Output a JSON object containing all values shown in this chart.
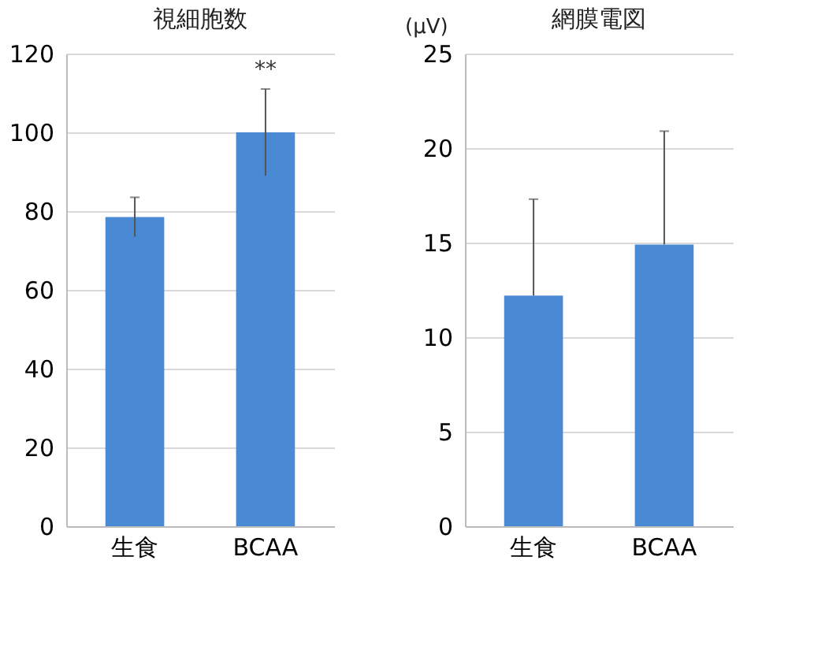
{
  "chart_data": [
    {
      "type": "bar",
      "title": "視細胞数",
      "categories": [
        "生食",
        "BCAA"
      ],
      "values": [
        78.5,
        100
      ],
      "errors": [
        5,
        11
      ],
      "color": "#4a8ad4",
      "ylim": [
        0,
        120
      ],
      "yticks": [
        0,
        20,
        40,
        60,
        80,
        100,
        120
      ],
      "grid": "y",
      "annotations": [
        "**"
      ]
    },
    {
      "type": "bar",
      "title": "網膜電図",
      "ylabel": "(μV)",
      "categories": [
        "生食",
        "BCAA"
      ],
      "values": [
        12.2,
        14.9
      ],
      "errors": [
        [
          12.2,
          17.3
        ],
        [
          14.9,
          20.9
        ]
      ],
      "color": "#4a8ad4",
      "ylim": [
        0,
        25
      ],
      "yticks": [
        0,
        5,
        10,
        15,
        20,
        25
      ],
      "grid": "y"
    }
  ]
}
